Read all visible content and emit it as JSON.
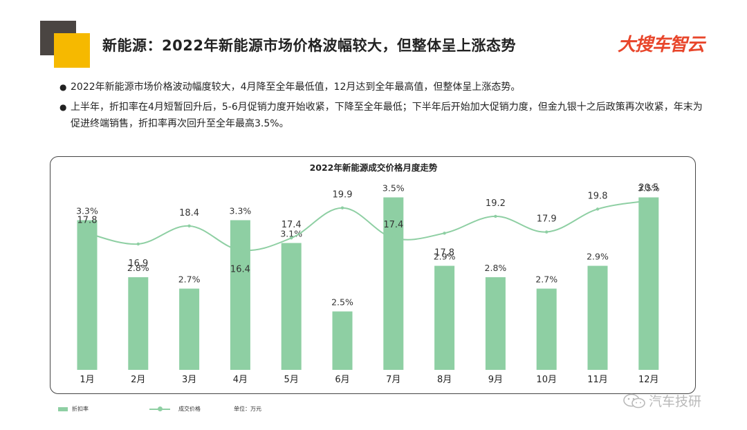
{
  "header": {
    "title": "新能源：2022年新能源市场价格波幅较大，但整体呈上涨态势",
    "brand": "大搜车智云"
  },
  "bullets": [
    "2022年新能源市场价格波动幅度较大，4月降至全年最低值，12月达到全年最高值，但整体呈上涨态势。",
    "上半年，折扣率在4月短暂回升后，5-6月促销力度开始收紧，下降至全年最低；下半年后开始加大促销力度，但金九银十之后政策再次收紧，年末为促进终端销售，折扣率再次回升至全年最高3.5%。"
  ],
  "legend": {
    "bar_label": "折扣率",
    "line_label": "成交价格",
    "unit": "单位：万元"
  },
  "watermark": "汽车技研",
  "colors": {
    "series": "#8ecfa3",
    "brand": "#e8462b",
    "accent_yellow": "#f6b900"
  },
  "chart_data": {
    "type": "bar+line",
    "title": "2022年新能源成交价格月度走势",
    "categories": [
      "1月",
      "2月",
      "3月",
      "4月",
      "5月",
      "6月",
      "7月",
      "8月",
      "9月",
      "10月",
      "11月",
      "12月"
    ],
    "series": [
      {
        "name": "折扣率",
        "type": "bar",
        "values": [
          3.3,
          2.8,
          2.7,
          3.3,
          3.1,
          2.5,
          3.5,
          2.9,
          2.8,
          2.7,
          2.9,
          3.5
        ],
        "labels": [
          "3.3%",
          "2.8%",
          "2.7%",
          "3.3%",
          "3.1%",
          "2.5%",
          "3.5%",
          "2.9%",
          "2.8%",
          "2.7%",
          "2.9%",
          "3.5%"
        ]
      },
      {
        "name": "成交价格",
        "type": "line",
        "smooth": true,
        "values": [
          17.8,
          16.9,
          18.4,
          16.4,
          17.4,
          19.9,
          17.4,
          17.8,
          19.2,
          17.9,
          19.8,
          20.5
        ],
        "labels": [
          "17.8",
          "16.9",
          "18.4",
          "16.4",
          "17.4",
          "19.9",
          "17.4",
          "17.8",
          "19.2",
          "17.9",
          "19.8",
          "20.5"
        ]
      }
    ],
    "grid": false,
    "legend_position": "bottom-left"
  }
}
